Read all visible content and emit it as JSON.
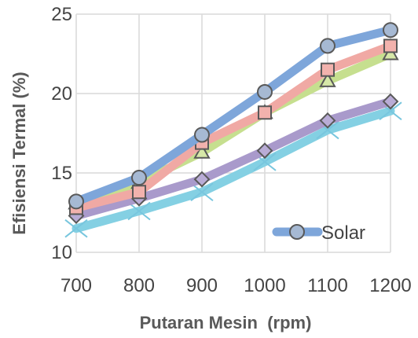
{
  "chart_data": {
    "type": "line",
    "xlabel": "Putaran Mesin  (rpm)",
    "ylabel": "Efisiensi Termal (%)",
    "categories": [
      "700",
      "800",
      "900",
      "1000",
      "1100",
      "1200"
    ],
    "ylim": [
      10,
      25
    ],
    "yticks": [
      "10",
      "15",
      "20",
      "25"
    ],
    "grid": true,
    "legend_position": "bottom-right",
    "series": [
      {
        "name": "Solar",
        "marker": "circle",
        "color": "#7ea6da",
        "marker_fill": "#a6b9d3",
        "marker_stroke": "#595959",
        "values": [
          13.2,
          14.7,
          17.4,
          20.1,
          23.0,
          24.0
        ]
      },
      {
        "name": "",
        "marker": "square",
        "color": "#f0a9a4",
        "marker_fill": "#f2b2ad",
        "marker_stroke": "#595959",
        "values": [
          12.8,
          13.8,
          16.9,
          18.8,
          21.5,
          23.0
        ]
      },
      {
        "name": "",
        "marker": "triangle",
        "color": "#c6df8f",
        "marker_fill": "#d6e8a8",
        "marker_stroke": "#595959",
        "values": [
          13.1,
          14.4,
          16.3,
          18.8,
          20.8,
          22.5
        ]
      },
      {
        "name": "",
        "marker": "diamond",
        "color": "#a99acb",
        "marker_fill": "#b9acd6",
        "marker_stroke": "#595959",
        "values": [
          12.3,
          13.4,
          14.6,
          16.4,
          18.3,
          19.5
        ]
      },
      {
        "name": "",
        "marker": "x",
        "color": "#84d0e3",
        "marker_fill": "none",
        "marker_stroke": "#78c6de",
        "values": [
          11.5,
          12.6,
          13.8,
          15.7,
          17.7,
          18.9
        ]
      }
    ]
  }
}
